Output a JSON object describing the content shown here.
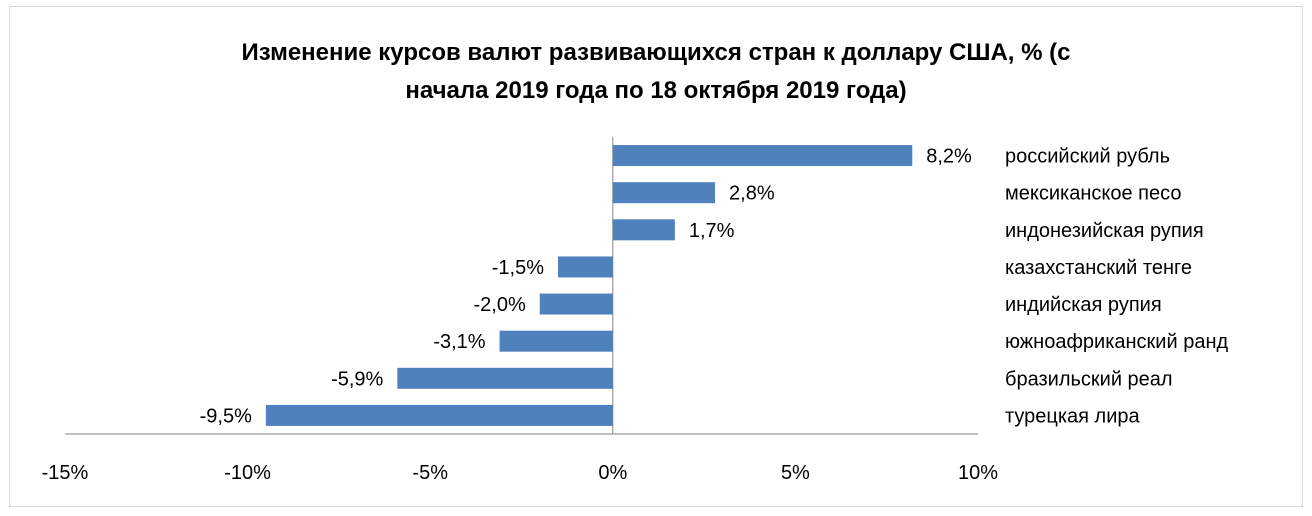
{
  "chart_data": {
    "type": "bar",
    "orientation": "horizontal",
    "title_lines": [
      "Изменение курсов валют развивающихся стран к доллару США, % (с",
      "начала 2019 года по 18 октября 2019 года)"
    ],
    "categories": [
      "российский рубль",
      "мексиканское песо",
      "индонезийская рупия",
      "казахстанский тенге",
      "индийская рупия",
      "южноафриканский ранд",
      "бразильский реал",
      "турецкая лира"
    ],
    "values": [
      8.2,
      2.8,
      1.7,
      -1.5,
      -2.0,
      -3.1,
      -5.9,
      -9.5
    ],
    "value_labels": [
      "8,2%",
      "2,8%",
      "1,7%",
      "-1,5%",
      "-2,0%",
      "-3,1%",
      "-5,9%",
      "-9,5%"
    ],
    "xlim": [
      -15,
      10
    ],
    "x_ticks": [
      -15,
      -10,
      -5,
      0,
      5,
      10
    ],
    "x_tick_labels": [
      "-15%",
      "-10%",
      "-5%",
      "0%",
      "5%",
      "10%"
    ],
    "category_labels_position": "right",
    "grid": false,
    "legend": "none",
    "bar_color": "#4f81bd"
  }
}
